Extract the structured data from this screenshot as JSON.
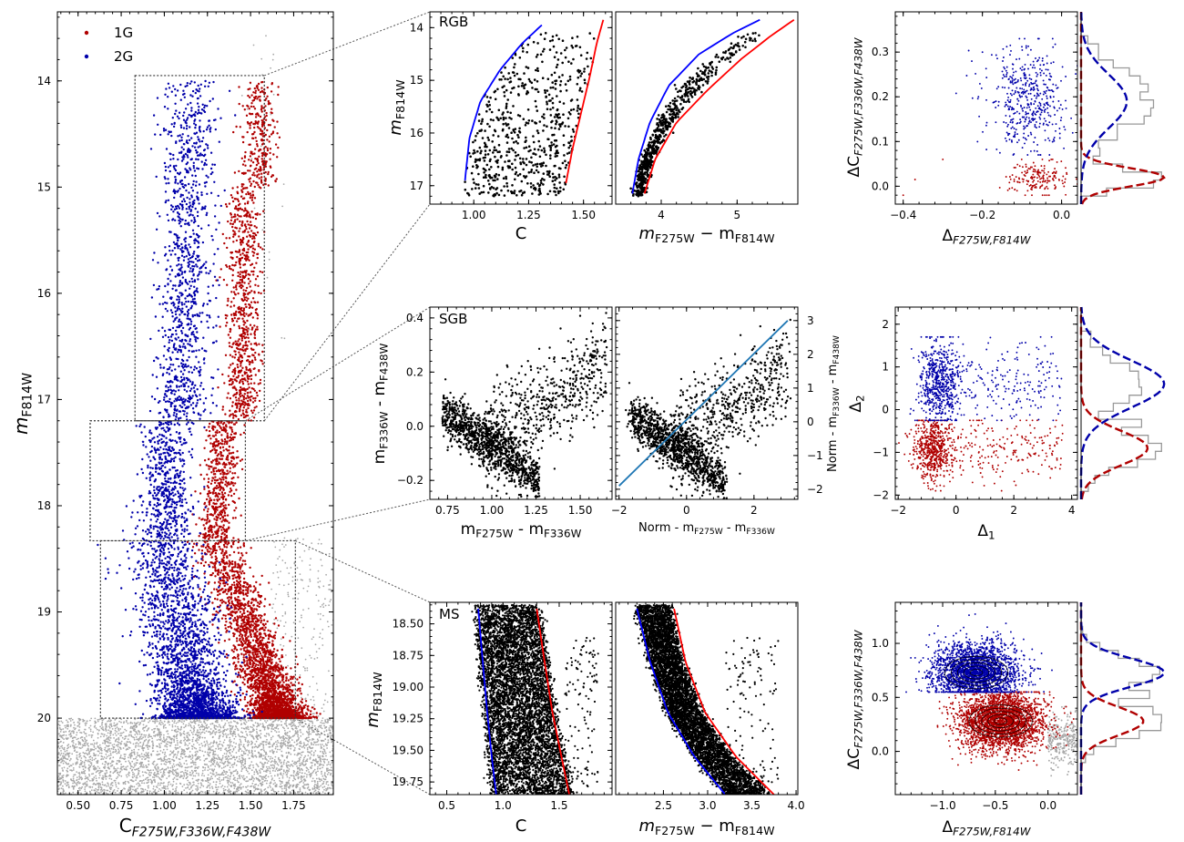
{
  "colors": {
    "first_gen": "#b00000",
    "second_gen": "#0000aa",
    "other": "#a8a8a8",
    "points": "#000000",
    "fit_line": "#1f77b4",
    "hist": "#999999",
    "guide": "#555555"
  },
  "legend": {
    "items": [
      {
        "label": "1G",
        "color": "#b00000"
      },
      {
        "label": "2G",
        "color": "#0000aa"
      }
    ],
    "position": "upper-left"
  },
  "chart_data": [
    {
      "id": "main",
      "type": "scatter",
      "xlabel": "C",
      "xlabel_sub": "F275W,F336W,F438W",
      "ylabel": "m",
      "ylabel_sub": "F814W",
      "xlim": [
        0.38,
        1.98
      ],
      "ylim": [
        20.72,
        13.35
      ],
      "yinvert": true,
      "xticks": [
        {
          "v": 0.5,
          "label": "0.50"
        },
        {
          "v": 0.75,
          "label": "0.75"
        },
        {
          "v": 1.0,
          "label": "1.00"
        },
        {
          "v": 1.25,
          "label": "1.25"
        },
        {
          "v": 1.5,
          "label": "1.50"
        },
        {
          "v": 1.75,
          "label": "1.75"
        }
      ],
      "yticks": [
        {
          "v": 14,
          "label": "14"
        },
        {
          "v": 15,
          "label": "15"
        },
        {
          "v": 16,
          "label": "16"
        },
        {
          "v": 17,
          "label": "17"
        },
        {
          "v": 18,
          "label": "18"
        },
        {
          "v": 19,
          "label": "19"
        },
        {
          "v": 20,
          "label": "20"
        }
      ],
      "series": [
        {
          "name": "1G"
        },
        {
          "name": "2G"
        }
      ],
      "boxes": [
        {
          "region": "RGB",
          "x": [
            0.83,
            1.58
          ],
          "y": [
            13.95,
            17.2
          ]
        },
        {
          "region": "SGB",
          "x": [
            0.57,
            1.47
          ],
          "y": [
            17.2,
            18.33
          ]
        },
        {
          "region": "MS",
          "x": [
            0.63,
            1.76
          ],
          "y": [
            18.33,
            20.0
          ]
        }
      ]
    },
    {
      "id": "rgb_c",
      "type": "scatter",
      "region": "RGB",
      "xlabel": "C",
      "ylabel": "m",
      "ylabel_sub": "F814W",
      "xlim": [
        0.8,
        1.63
      ],
      "ylim": [
        17.35,
        13.7
      ],
      "yinvert": true,
      "xticks": [
        {
          "v": 1.0,
          "label": "1.00"
        },
        {
          "v": 1.25,
          "label": "1.25"
        },
        {
          "v": 1.5,
          "label": "1.50"
        }
      ],
      "yticks": [
        {
          "v": 14,
          "label": "14"
        },
        {
          "v": 15,
          "label": "15"
        },
        {
          "v": 16,
          "label": "16"
        },
        {
          "v": 17,
          "label": "17"
        }
      ],
      "fiducials": [
        {
          "color": "blue",
          "points": [
            [
              0.96,
              16.9
            ],
            [
              0.98,
              16.1
            ],
            [
              1.03,
              15.4
            ],
            [
              1.12,
              14.8
            ],
            [
              1.22,
              14.3
            ],
            [
              1.31,
              13.95
            ]
          ]
        },
        {
          "color": "red",
          "points": [
            [
              1.42,
              16.95
            ],
            [
              1.45,
              16.3
            ],
            [
              1.49,
              15.6
            ],
            [
              1.53,
              14.9
            ],
            [
              1.56,
              14.3
            ],
            [
              1.59,
              13.85
            ]
          ]
        }
      ]
    },
    {
      "id": "rgb_col",
      "type": "scatter",
      "region": "RGB",
      "xlabel": "m",
      "xlabel_sub1": "F275W",
      "xlabel_mid": " − m",
      "xlabel_sub2": "F814W",
      "xlim": [
        3.4,
        5.8
      ],
      "ylim": [
        17.35,
        13.7
      ],
      "yinvert": true,
      "xticks": [
        {
          "v": 4,
          "label": "4"
        },
        {
          "v": 5,
          "label": "5"
        }
      ],
      "fiducials": [
        {
          "color": "blue",
          "points": [
            [
              3.62,
              17.15
            ],
            [
              3.7,
              16.5
            ],
            [
              3.85,
              15.8
            ],
            [
              4.1,
              15.1
            ],
            [
              4.5,
              14.5
            ],
            [
              4.95,
              14.1
            ],
            [
              5.3,
              13.85
            ]
          ]
        },
        {
          "color": "red",
          "points": [
            [
              3.78,
              17.15
            ],
            [
              3.92,
              16.5
            ],
            [
              4.2,
              15.8
            ],
            [
              4.6,
              15.2
            ],
            [
              5.05,
              14.6
            ],
            [
              5.45,
              14.15
            ],
            [
              5.75,
              13.85
            ]
          ]
        }
      ]
    },
    {
      "id": "rgb_chm",
      "type": "scatter_hist",
      "region": "RGB",
      "xlabel": "Δ",
      "xlabel_sub": "F275W,F814W",
      "ylabel": "ΔC",
      "ylabel_sub": "F275W,F336W,F438W",
      "xlim": [
        -0.42,
        0.04
      ],
      "ylim": [
        -0.04,
        0.39
      ],
      "xticks": [
        {
          "v": -0.4,
          "label": "−0.4"
        },
        {
          "v": -0.2,
          "label": "−0.2"
        },
        {
          "v": 0.0,
          "label": "0.0"
        }
      ],
      "yticks": [
        {
          "v": 0.0,
          "label": "0.0"
        },
        {
          "v": 0.1,
          "label": "0.1"
        },
        {
          "v": 0.2,
          "label": "0.2"
        },
        {
          "v": 0.3,
          "label": "0.3"
        }
      ],
      "gauss": [
        {
          "pop": "1G",
          "mu": 0.02,
          "sig": 0.02,
          "amp": 1.0
        },
        {
          "pop": "2G",
          "mu": 0.19,
          "sig": 0.06,
          "amp": 0.55
        }
      ]
    },
    {
      "id": "sgb_col",
      "type": "scatter",
      "region": "SGB",
      "xlabel": "m",
      "xlabel_sub1": "F275W",
      "xlabel_mid": " - m",
      "xlabel_sub2": "F336W",
      "ylabel": "m",
      "ylabel_sub1": "F336W",
      "ylabel_mid": " - m",
      "ylabel_sub2": "F438W",
      "xlim": [
        0.65,
        1.68
      ],
      "ylim": [
        -0.27,
        0.44
      ],
      "xticks": [
        {
          "v": 0.75,
          "label": "0.75"
        },
        {
          "v": 1.0,
          "label": "1.00"
        },
        {
          "v": 1.25,
          "label": "1.25"
        },
        {
          "v": 1.5,
          "label": "1.50"
        }
      ],
      "yticks": [
        {
          "v": -0.2,
          "label": "−0.2"
        },
        {
          "v": 0.0,
          "label": "0.0"
        },
        {
          "v": 0.2,
          "label": "0.2"
        },
        {
          "v": 0.4,
          "label": "0.4"
        }
      ]
    },
    {
      "id": "sgb_norm",
      "type": "scatter",
      "region": "SGB",
      "xlabel": "Norm - m",
      "xlabel_sub": "F275W",
      "xlabel_mid": " - m",
      "xlabel_sub2": "F336W",
      "ylabel": "Norm - m",
      "ylabel_sub1": "F336W",
      "ylabel_mid": " - m",
      "ylabel_sub2": "F438W",
      "xlim": [
        -2.1,
        3.3
      ],
      "ylim": [
        -2.3,
        3.4
      ],
      "xticks": [
        {
          "v": -2,
          "label": "−2"
        },
        {
          "v": 0,
          "label": "0"
        },
        {
          "v": 2,
          "label": "2"
        }
      ],
      "yticks": [
        {
          "v": -2,
          "label": "−2"
        },
        {
          "v": -1,
          "label": "−1"
        },
        {
          "v": 0,
          "label": "0"
        },
        {
          "v": 1,
          "label": "1"
        },
        {
          "v": 2,
          "label": "2"
        },
        {
          "v": 3,
          "label": "3"
        }
      ],
      "fit_line": [
        [
          -2.0,
          -1.9
        ],
        [
          3.0,
          3.0
        ]
      ]
    },
    {
      "id": "sgb_chm",
      "type": "scatter_hist",
      "region": "SGB",
      "xlabel": "Δ",
      "xlabel_sub": "1",
      "ylabel": "Δ",
      "ylabel_sub": "2",
      "xlim": [
        -2.1,
        4.2
      ],
      "ylim": [
        -2.1,
        2.4
      ],
      "xticks": [
        {
          "v": -2,
          "label": "−2"
        },
        {
          "v": 0,
          "label": "0"
        },
        {
          "v": 2,
          "label": "2"
        },
        {
          "v": 4,
          "label": "4"
        }
      ],
      "yticks": [
        {
          "v": -2,
          "label": "−2"
        },
        {
          "v": -1,
          "label": "−1"
        },
        {
          "v": 0,
          "label": "0"
        },
        {
          "v": 1,
          "label": "1"
        },
        {
          "v": 2,
          "label": "2"
        }
      ],
      "gauss": [
        {
          "pop": "1G",
          "mu": -0.9,
          "sig": 0.4,
          "amp": 0.8
        },
        {
          "pop": "2G",
          "mu": 0.6,
          "sig": 0.55,
          "amp": 1.0
        }
      ]
    },
    {
      "id": "ms_c",
      "type": "scatter",
      "region": "MS",
      "xlabel": "C",
      "ylabel": "m",
      "ylabel_sub": "F814W",
      "xlim": [
        0.35,
        1.97
      ],
      "ylim": [
        19.85,
        18.33
      ],
      "yinvert": true,
      "xticks": [
        {
          "v": 0.5,
          "label": "0.5"
        },
        {
          "v": 1.0,
          "label": "1.0"
        },
        {
          "v": 1.5,
          "label": "1.5"
        }
      ],
      "yticks": [
        {
          "v": 18.5,
          "label": "18.50"
        },
        {
          "v": 18.75,
          "label": "18.75"
        },
        {
          "v": 19.0,
          "label": "19.00"
        },
        {
          "v": 19.25,
          "label": "19.25"
        },
        {
          "v": 19.5,
          "label": "19.50"
        },
        {
          "v": 19.75,
          "label": "19.75"
        }
      ],
      "fiducials": [
        {
          "color": "blue",
          "points": [
            [
              0.78,
              18.38
            ],
            [
              0.82,
              18.8
            ],
            [
              0.86,
              19.2
            ],
            [
              0.9,
              19.55
            ],
            [
              0.94,
              19.85
            ]
          ]
        },
        {
          "color": "red",
          "points": [
            [
              1.3,
              18.38
            ],
            [
              1.37,
              18.8
            ],
            [
              1.44,
              19.2
            ],
            [
              1.52,
              19.55
            ],
            [
              1.59,
              19.85
            ]
          ]
        }
      ]
    },
    {
      "id": "ms_col",
      "type": "scatter",
      "region": "MS",
      "xlabel": "m",
      "xlabel_sub1": "F275W",
      "xlabel_mid": " − m",
      "xlabel_sub2": "F814W",
      "xlim": [
        1.96,
        4.02
      ],
      "ylim": [
        19.85,
        18.33
      ],
      "yinvert": true,
      "xticks": [
        {
          "v": 2.5,
          "label": "2.5"
        },
        {
          "v": 3.0,
          "label": "3.0"
        },
        {
          "v": 3.5,
          "label": "3.5"
        },
        {
          "v": 4.0,
          "label": "4.0"
        }
      ],
      "fiducials": [
        {
          "color": "blue",
          "points": [
            [
              2.2,
              18.38
            ],
            [
              2.35,
              18.8
            ],
            [
              2.55,
              19.2
            ],
            [
              2.85,
              19.55
            ],
            [
              3.2,
              19.85
            ]
          ]
        },
        {
          "color": "red",
          "points": [
            [
              2.62,
              18.38
            ],
            [
              2.75,
              18.8
            ],
            [
              2.97,
              19.2
            ],
            [
              3.32,
              19.55
            ],
            [
              3.75,
              19.85
            ]
          ]
        }
      ]
    },
    {
      "id": "ms_chm",
      "type": "scatter_hist",
      "region": "MS",
      "xlabel": "Δ",
      "xlabel_sub": "F275W,F814W",
      "ylabel": "ΔC",
      "ylabel_sub": "F275W,F336W,F438W",
      "xlim": [
        -1.45,
        0.28
      ],
      "ylim": [
        -0.4,
        1.38
      ],
      "xticks": [
        {
          "v": -1.0,
          "label": "−1.0"
        },
        {
          "v": -0.5,
          "label": "−0.5"
        },
        {
          "v": 0.0,
          "label": "0.0"
        }
      ],
      "yticks": [
        {
          "v": 0.0,
          "label": "0.0"
        },
        {
          "v": 0.5,
          "label": "0.5"
        },
        {
          "v": 1.0,
          "label": "1.0"
        }
      ],
      "gauss": [
        {
          "pop": "1G",
          "mu": 0.28,
          "sig": 0.13,
          "amp": 0.75
        },
        {
          "pop": "2G",
          "mu": 0.73,
          "sig": 0.13,
          "amp": 1.0
        }
      ]
    }
  ],
  "panel_labels": {
    "rgb": "RGB",
    "sgb": "SGB",
    "ms": "MS"
  }
}
